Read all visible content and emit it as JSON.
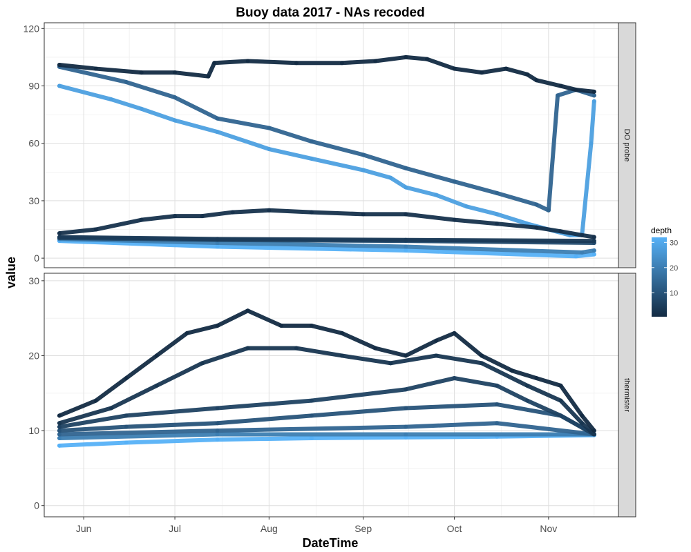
{
  "chart_data": {
    "type": "scatter",
    "title": "Buoy data 2017 - NAs recoded",
    "xlabel": "DateTime",
    "ylabel": "value",
    "x_type": "date",
    "xlim": [
      "2017-05-19",
      "2017-11-24"
    ],
    "x_ticks": [
      {
        "date": "2017-06-01",
        "label": "Jun"
      },
      {
        "date": "2017-07-01",
        "label": "Jul"
      },
      {
        "date": "2017-08-01",
        "label": "Aug"
      },
      {
        "date": "2017-09-01",
        "label": "Sep"
      },
      {
        "date": "2017-10-01",
        "label": "Oct"
      },
      {
        "date": "2017-11-01",
        "label": "Nov"
      }
    ],
    "grid": true,
    "legend": {
      "title": "depth",
      "position": "right",
      "type": "continuous",
      "range": [
        0.5,
        32
      ],
      "ticks": [
        10,
        20,
        30
      ],
      "low_color": "#132B43",
      "high_color": "#56B1F7"
    },
    "panels": [
      {
        "strip": "DO probe",
        "ylim": [
          -5,
          123
        ],
        "y_ticks": [
          0,
          30,
          60,
          90,
          120
        ],
        "series": [
          {
            "depth": 0.5,
            "points": [
              [
                "2017-05-24",
                101
              ],
              [
                "2017-06-05",
                99
              ],
              [
                "2017-06-20",
                97
              ],
              [
                "2017-07-01",
                97
              ],
              [
                "2017-07-12",
                95
              ],
              [
                "2017-07-14",
                102
              ],
              [
                "2017-07-25",
                103
              ],
              [
                "2017-08-10",
                102
              ],
              [
                "2017-08-25",
                102
              ],
              [
                "2017-09-05",
                103
              ],
              [
                "2017-09-15",
                105
              ],
              [
                "2017-09-22",
                104
              ],
              [
                "2017-10-01",
                99
              ],
              [
                "2017-10-10",
                97
              ],
              [
                "2017-10-18",
                99
              ],
              [
                "2017-10-25",
                96
              ],
              [
                "2017-10-28",
                93
              ],
              [
                "2017-11-05",
                90
              ],
              [
                "2017-11-10",
                88
              ],
              [
                "2017-11-16",
                87
              ]
            ]
          },
          {
            "depth": 2,
            "points": [
              [
                "2017-05-24",
                13
              ],
              [
                "2017-06-05",
                15
              ],
              [
                "2017-06-20",
                20
              ],
              [
                "2017-07-01",
                22
              ],
              [
                "2017-07-10",
                22
              ],
              [
                "2017-07-20",
                24
              ],
              [
                "2017-08-01",
                25
              ],
              [
                "2017-08-15",
                24
              ],
              [
                "2017-09-01",
                23
              ],
              [
                "2017-09-15",
                23
              ],
              [
                "2017-10-01",
                20
              ],
              [
                "2017-10-15",
                18
              ],
              [
                "2017-10-28",
                16
              ],
              [
                "2017-11-05",
                14
              ],
              [
                "2017-11-12",
                12
              ],
              [
                "2017-11-16",
                11
              ]
            ]
          },
          {
            "depth": 4,
            "points": [
              [
                "2017-05-24",
                11
              ],
              [
                "2017-07-15",
                10
              ],
              [
                "2017-09-15",
                9.5
              ],
              [
                "2017-11-16",
                9
              ]
            ]
          },
          {
            "depth": 8,
            "points": [
              [
                "2017-05-24",
                10.5
              ],
              [
                "2017-07-15",
                9.5
              ],
              [
                "2017-09-15",
                9
              ],
              [
                "2017-11-16",
                8
              ]
            ]
          },
          {
            "depth": 14,
            "points": [
              [
                "2017-05-24",
                100
              ],
              [
                "2017-06-15",
                92
              ],
              [
                "2017-07-01",
                84
              ],
              [
                "2017-07-15",
                73
              ],
              [
                "2017-08-01",
                68
              ],
              [
                "2017-08-15",
                61
              ],
              [
                "2017-09-01",
                54
              ],
              [
                "2017-09-15",
                47
              ],
              [
                "2017-10-01",
                40
              ],
              [
                "2017-10-15",
                34
              ],
              [
                "2017-10-28",
                28
              ],
              [
                "2017-11-01",
                25
              ],
              [
                "2017-11-04",
                85
              ],
              [
                "2017-11-10",
                88
              ],
              [
                "2017-11-16",
                85
              ]
            ]
          },
          {
            "depth": 20,
            "points": [
              [
                "2017-05-24",
                10
              ],
              [
                "2017-07-15",
                8
              ],
              [
                "2017-09-15",
                6
              ],
              [
                "2017-11-12",
                3
              ],
              [
                "2017-11-16",
                4
              ]
            ]
          },
          {
            "depth": 28,
            "points": [
              [
                "2017-05-24",
                90
              ],
              [
                "2017-06-10",
                83
              ],
              [
                "2017-06-20",
                78
              ],
              [
                "2017-07-01",
                72
              ],
              [
                "2017-07-15",
                66
              ],
              [
                "2017-08-01",
                57
              ],
              [
                "2017-08-15",
                52
              ],
              [
                "2017-09-01",
                46
              ],
              [
                "2017-09-10",
                42
              ],
              [
                "2017-09-15",
                37
              ],
              [
                "2017-09-25",
                33
              ],
              [
                "2017-10-05",
                27
              ],
              [
                "2017-10-15",
                23
              ],
              [
                "2017-10-25",
                18
              ],
              [
                "2017-11-01",
                15
              ],
              [
                "2017-11-08",
                12
              ],
              [
                "2017-11-12",
                12
              ],
              [
                "2017-11-15",
                60
              ],
              [
                "2017-11-16",
                82
              ]
            ]
          },
          {
            "depth": 32,
            "points": [
              [
                "2017-05-24",
                9
              ],
              [
                "2017-07-15",
                6
              ],
              [
                "2017-09-15",
                4
              ],
              [
                "2017-11-10",
                1
              ],
              [
                "2017-11-16",
                2
              ]
            ]
          }
        ]
      },
      {
        "strip": "thermister",
        "ylim": [
          -1.5,
          31
        ],
        "y_ticks": [
          0,
          10,
          20,
          30
        ],
        "series": [
          {
            "depth": 0.5,
            "points": [
              [
                "2017-05-24",
                12
              ],
              [
                "2017-06-05",
                14
              ],
              [
                "2017-06-15",
                17
              ],
              [
                "2017-06-25",
                20
              ],
              [
                "2017-07-05",
                23
              ],
              [
                "2017-07-15",
                24
              ],
              [
                "2017-07-25",
                26
              ],
              [
                "2017-08-05",
                24
              ],
              [
                "2017-08-15",
                24
              ],
              [
                "2017-08-25",
                23
              ],
              [
                "2017-09-05",
                21
              ],
              [
                "2017-09-15",
                20
              ],
              [
                "2017-09-25",
                22
              ],
              [
                "2017-10-01",
                23
              ],
              [
                "2017-10-10",
                20
              ],
              [
                "2017-10-20",
                18
              ],
              [
                "2017-10-28",
                17
              ],
              [
                "2017-11-05",
                16
              ],
              [
                "2017-11-12",
                12
              ],
              [
                "2017-11-16",
                10
              ]
            ]
          },
          {
            "depth": 3,
            "points": [
              [
                "2017-05-24",
                11
              ],
              [
                "2017-06-10",
                13
              ],
              [
                "2017-06-25",
                16
              ],
              [
                "2017-07-10",
                19
              ],
              [
                "2017-07-25",
                21
              ],
              [
                "2017-08-10",
                21
              ],
              [
                "2017-08-25",
                20
              ],
              [
                "2017-09-10",
                19
              ],
              [
                "2017-09-25",
                20
              ],
              [
                "2017-10-10",
                19
              ],
              [
                "2017-10-25",
                16
              ],
              [
                "2017-11-05",
                14
              ],
              [
                "2017-11-12",
                11
              ],
              [
                "2017-11-16",
                9.5
              ]
            ]
          },
          {
            "depth": 6,
            "points": [
              [
                "2017-05-24",
                10.5
              ],
              [
                "2017-06-15",
                12
              ],
              [
                "2017-07-15",
                13
              ],
              [
                "2017-08-15",
                14
              ],
              [
                "2017-09-15",
                15.5
              ],
              [
                "2017-10-01",
                17
              ],
              [
                "2017-10-15",
                16
              ],
              [
                "2017-10-25",
                14
              ],
              [
                "2017-11-05",
                12
              ],
              [
                "2017-11-16",
                9.5
              ]
            ]
          },
          {
            "depth": 10,
            "points": [
              [
                "2017-05-24",
                10
              ],
              [
                "2017-06-15",
                10.5
              ],
              [
                "2017-07-15",
                11
              ],
              [
                "2017-08-15",
                12
              ],
              [
                "2017-09-15",
                13
              ],
              [
                "2017-10-15",
                13.5
              ],
              [
                "2017-11-05",
                12
              ],
              [
                "2017-11-16",
                9.5
              ]
            ]
          },
          {
            "depth": 14,
            "points": [
              [
                "2017-05-24",
                9.5
              ],
              [
                "2017-07-15",
                10
              ],
              [
                "2017-09-15",
                10.5
              ],
              [
                "2017-10-15",
                11
              ],
              [
                "2017-11-16",
                9.5
              ]
            ]
          },
          {
            "depth": 20,
            "points": [
              [
                "2017-05-24",
                9
              ],
              [
                "2017-07-15",
                9.5
              ],
              [
                "2017-09-15",
                9.5
              ],
              [
                "2017-11-16",
                9.5
              ]
            ]
          },
          {
            "depth": 32,
            "points": [
              [
                "2017-05-24",
                8
              ],
              [
                "2017-06-15",
                8.4
              ],
              [
                "2017-07-15",
                8.8
              ],
              [
                "2017-08-15",
                9
              ],
              [
                "2017-09-15",
                9.1
              ],
              [
                "2017-10-15",
                9.2
              ],
              [
                "2017-11-16",
                9.4
              ]
            ]
          }
        ]
      }
    ]
  }
}
